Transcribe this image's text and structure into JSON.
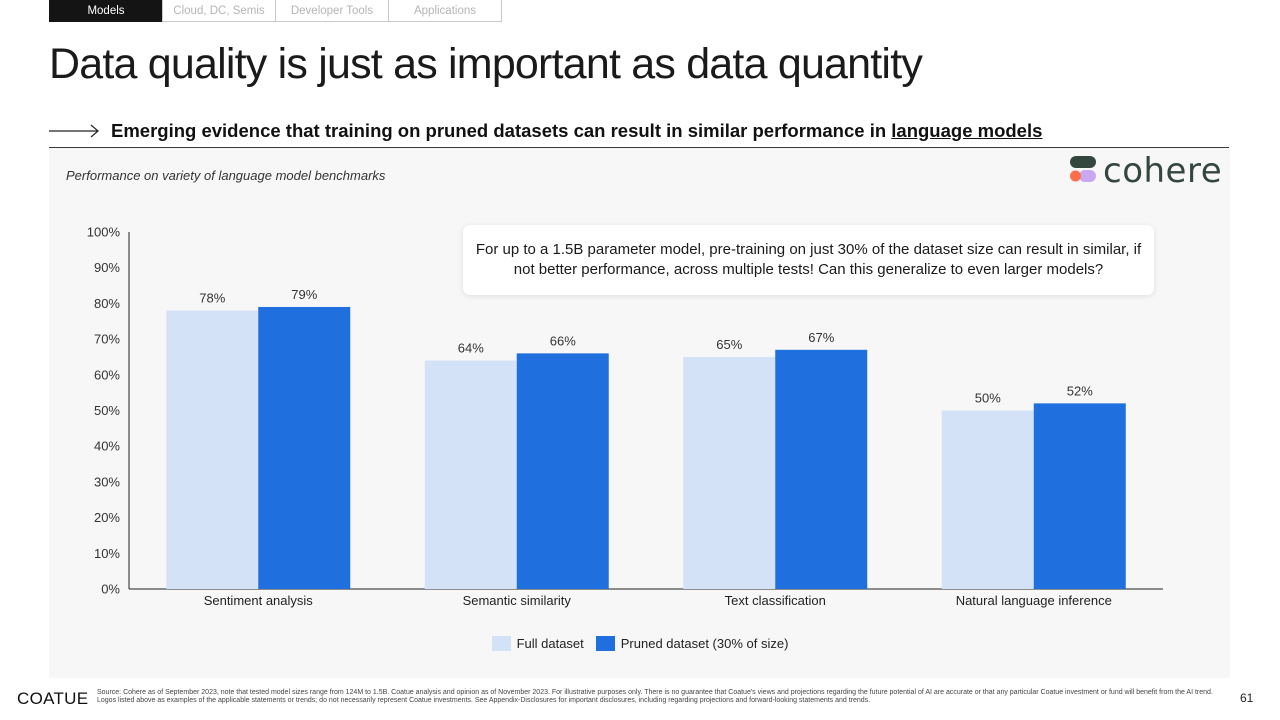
{
  "nav": {
    "tabs": [
      {
        "label": "Models",
        "active": true
      },
      {
        "label": "Cloud, DC, Semis",
        "active": false
      },
      {
        "label": "Developer Tools",
        "active": false
      },
      {
        "label": "Applications",
        "active": false
      }
    ]
  },
  "slide": {
    "title": "Data quality is just as important as data quantity",
    "subtitle_prefix": "Emerging evidence that training on pruned datasets can result in similar performance in ",
    "subtitle_link": "language models",
    "callout": "For up to a 1.5B parameter model, pre-training on just 30% of the dataset size can result in similar, if not better performance, across multiple tests! Can this generalize to even larger models?",
    "logo_text": "cohere",
    "brand": "COATUE",
    "page_number": "61",
    "footnote": "Source: Cohere as of September 2023, note that tested model sizes range from 124M to 1.5B. Coatue analysis and opinion as of November 2023. For illustrative purposes only. There is no guarantee that Coatue's views and projections regarding the future potential of AI are accurate or that any particular Coatue investment or fund will benefit from the AI trend. Logos listed above as examples of the applicable statements or trends; do not necessarily represent Coatue investments. See Appendix-Disclosures for important disclosures, including regarding projections and forward-looking statements and trends."
  },
  "colors": {
    "full_dataset": "#d3e2f7",
    "pruned_dataset": "#1f6fde",
    "axis": "#222222",
    "logo_green": "#34473e"
  },
  "chart_data": {
    "type": "bar",
    "title": "Performance on variety of language model benchmarks",
    "categories": [
      "Sentiment analysis",
      "Semantic similarity",
      "Text classification",
      "Natural language inference"
    ],
    "series": [
      {
        "name": "Full dataset",
        "values": [
          78,
          64,
          65,
          50
        ],
        "labels": [
          "78%",
          "64%",
          "65%",
          "50%"
        ]
      },
      {
        "name": "Pruned dataset (30% of size)",
        "values": [
          79,
          66,
          67,
          52
        ],
        "labels": [
          "79%",
          "66%",
          "67%",
          "52%"
        ]
      }
    ],
    "ylim": [
      0,
      100
    ],
    "yticks": [
      "0%",
      "10%",
      "20%",
      "30%",
      "40%",
      "50%",
      "60%",
      "70%",
      "80%",
      "90%",
      "100%"
    ],
    "grid": false,
    "legend_position": "bottom"
  }
}
